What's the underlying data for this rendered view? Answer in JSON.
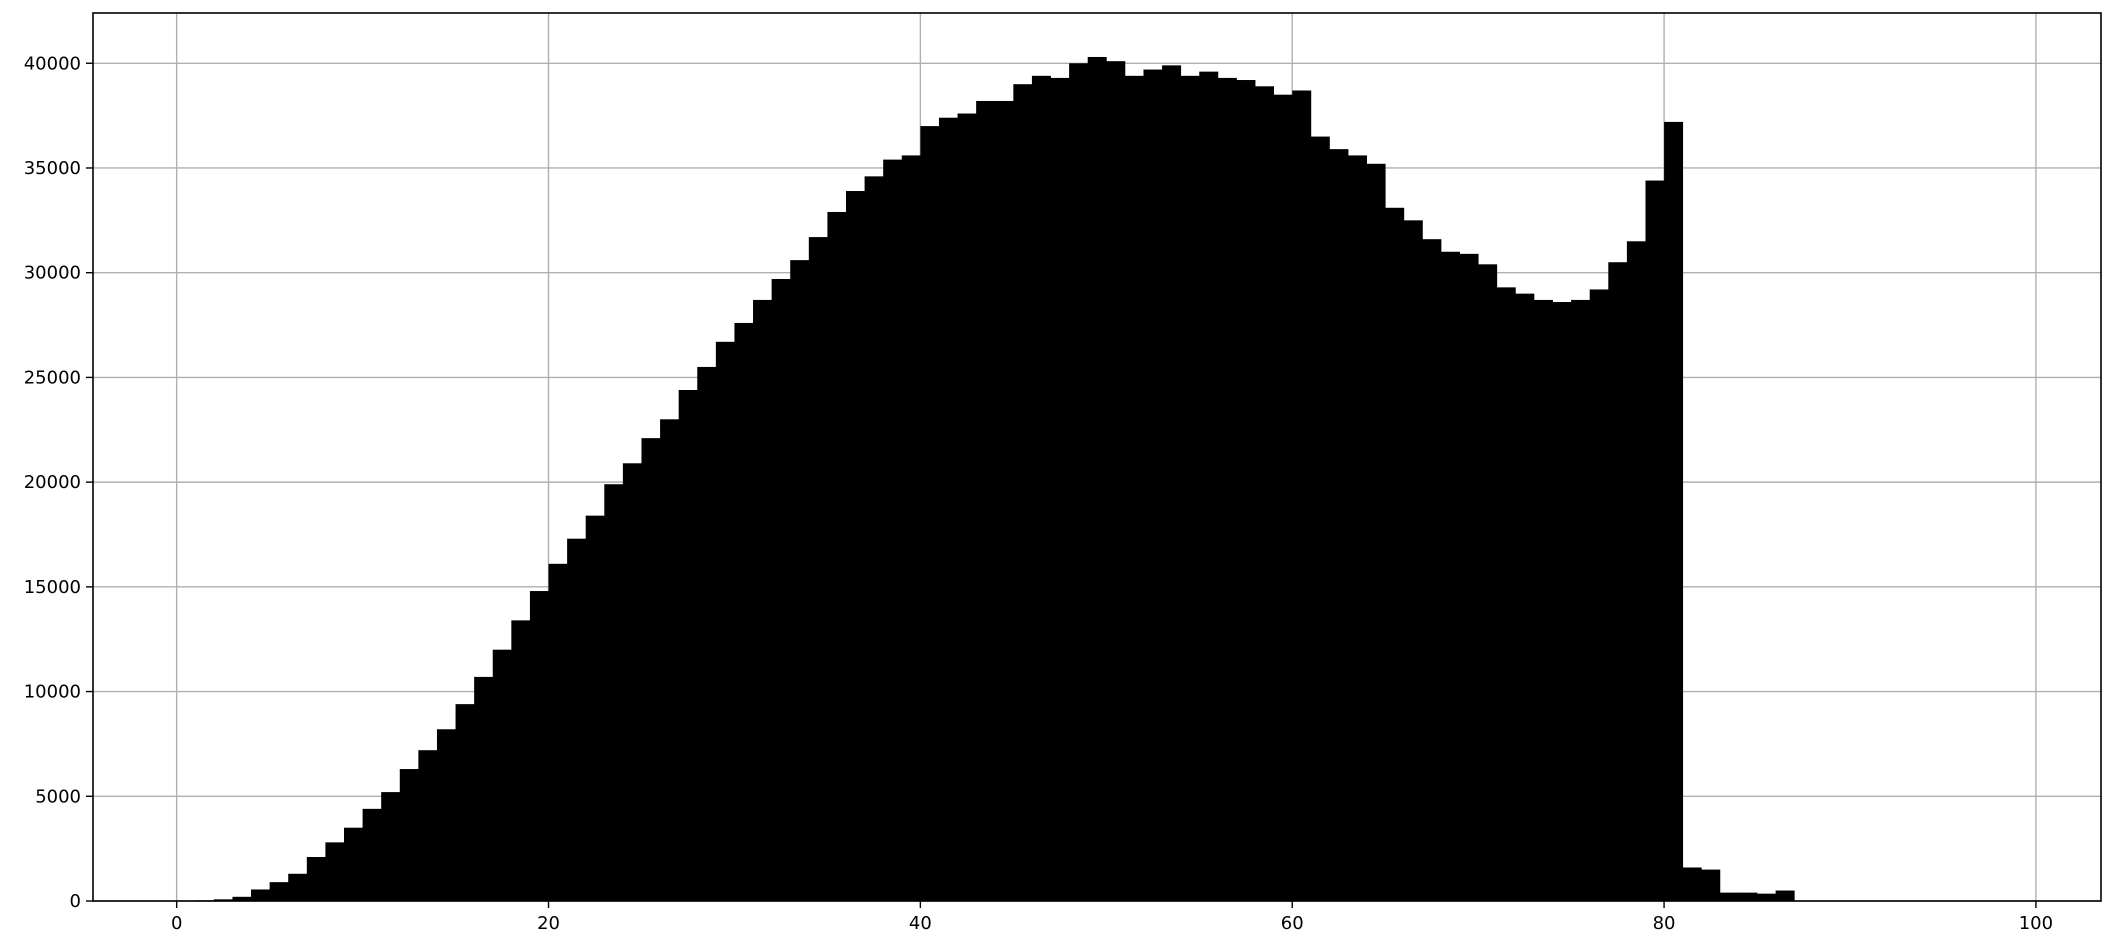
{
  "chart_data": {
    "type": "bar",
    "title": "",
    "xlabel": "",
    "ylabel": "",
    "bin_width": 1,
    "bin_starts": [
      0,
      1,
      2,
      3,
      4,
      5,
      6,
      7,
      8,
      9,
      10,
      11,
      12,
      13,
      14,
      15,
      16,
      17,
      18,
      19,
      20,
      21,
      22,
      23,
      24,
      25,
      26,
      27,
      28,
      29,
      30,
      31,
      32,
      33,
      34,
      35,
      36,
      37,
      38,
      39,
      40,
      41,
      42,
      43,
      44,
      45,
      46,
      47,
      48,
      49,
      50,
      51,
      52,
      53,
      54,
      55,
      56,
      57,
      58,
      59,
      60,
      61,
      62,
      63,
      64,
      65,
      66,
      67,
      68,
      69,
      70,
      71,
      72,
      73,
      74,
      75,
      76,
      77,
      78,
      79,
      80,
      81,
      82,
      83,
      84,
      85,
      86,
      87,
      88,
      89,
      90,
      91,
      92,
      93,
      94,
      95,
      96,
      97,
      98,
      99
    ],
    "values": [
      0,
      30,
      80,
      200,
      550,
      900,
      1300,
      2100,
      2800,
      3500,
      4400,
      5200,
      6300,
      7200,
      8200,
      9400,
      10700,
      12000,
      13400,
      14800,
      16100,
      17300,
      18400,
      19900,
      20900,
      22100,
      23000,
      24400,
      25500,
      26700,
      27600,
      28700,
      29700,
      30600,
      31700,
      32900,
      33900,
      34600,
      35400,
      35600,
      37000,
      37400,
      37600,
      38200,
      38200,
      39000,
      39400,
      39300,
      40000,
      40300,
      40100,
      39400,
      39700,
      39900,
      39400,
      39600,
      39300,
      39200,
      38900,
      38500,
      38700,
      36500,
      35900,
      35600,
      35200,
      33100,
      32500,
      31600,
      31000,
      30900,
      30400,
      29300,
      29000,
      28700,
      28600,
      28700,
      29200,
      30500,
      31500,
      34400,
      37200,
      1600,
      1500,
      400,
      400,
      350,
      500,
      0,
      0,
      0,
      0,
      0,
      0,
      0,
      0,
      0,
      0,
      0,
      0,
      0
    ],
    "bar_color": "#000000",
    "xlim": [
      -4.5,
      103.5
    ],
    "ylim": [
      0,
      42400
    ],
    "x_ticks": [
      0,
      20,
      40,
      60,
      80,
      100
    ],
    "x_tick_labels": [
      "0",
      "20",
      "40",
      "60",
      "80",
      "100"
    ],
    "y_ticks": [
      0,
      5000,
      10000,
      15000,
      20000,
      25000,
      30000,
      35000,
      40000
    ],
    "y_tick_labels": [
      "0",
      "5000",
      "10000",
      "15000",
      "20000",
      "25000",
      "30000",
      "35000",
      "40000"
    ],
    "grid": true,
    "grid_color": "#b0b0b0",
    "legend": false
  }
}
